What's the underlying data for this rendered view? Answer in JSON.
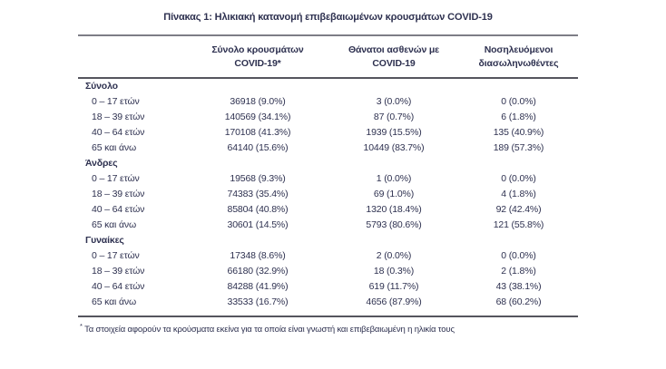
{
  "title": "Πίνακας 1: Ηλικιακή κατανομή επιβεβαιωμένων κρουσμάτων COVID-19",
  "table": {
    "columns": [
      {
        "line1": "Σύνολο κρουσμάτων",
        "line2": "COVID-19*"
      },
      {
        "line1": "Θάνατοι ασθενών με",
        "line2": "COVID-19"
      },
      {
        "line1": "Νοσηλευόμενοι",
        "line2": "διασωληνωθέντες"
      }
    ],
    "sections": [
      {
        "label": "Σύνολο",
        "rows": [
          {
            "age": "0 – 17 ετών",
            "cases": "36918 (9.0%)",
            "deaths": "3 (0.0%)",
            "intubated": "0 (0.0%)"
          },
          {
            "age": "18 – 39 ετών",
            "cases": "140569 (34.1%)",
            "deaths": "87 (0.7%)",
            "intubated": "6 (1.8%)"
          },
          {
            "age": "40 – 64 ετών",
            "cases": "170108 (41.3%)",
            "deaths": "1939 (15.5%)",
            "intubated": "135 (40.9%)"
          },
          {
            "age": "65 και άνω",
            "cases": "64140 (15.6%)",
            "deaths": "10449 (83.7%)",
            "intubated": "189 (57.3%)"
          }
        ]
      },
      {
        "label": "Άνδρες",
        "rows": [
          {
            "age": "0 – 17 ετών",
            "cases": "19568 (9.3%)",
            "deaths": "1 (0.0%)",
            "intubated": "0 (0.0%)"
          },
          {
            "age": "18 – 39 ετών",
            "cases": "74383 (35.4%)",
            "deaths": "69 (1.0%)",
            "intubated": "4 (1.8%)"
          },
          {
            "age": "40 – 64 ετών",
            "cases": "85804 (40.8%)",
            "deaths": "1320 (18.4%)",
            "intubated": "92 (42.4%)"
          },
          {
            "age": "65 και άνω",
            "cases": "30601 (14.5%)",
            "deaths": "5793 (80.6%)",
            "intubated": "121 (55.8%)"
          }
        ]
      },
      {
        "label": "Γυναίκες",
        "rows": [
          {
            "age": "0 – 17 ετών",
            "cases": "17348 (8.6%)",
            "deaths": "2 (0.0%)",
            "intubated": "0 (0.0%)"
          },
          {
            "age": "18 – 39 ετών",
            "cases": "66180 (32.9%)",
            "deaths": "18 (0.3%)",
            "intubated": "2 (1.8%)"
          },
          {
            "age": "40 – 64 ετών",
            "cases": "84288 (41.9%)",
            "deaths": "619 (11.7%)",
            "intubated": "43 (38.1%)"
          },
          {
            "age": "65 και άνω",
            "cases": "33533 (16.7%)",
            "deaths": "4656 (87.9%)",
            "intubated": "68 (60.2%)"
          }
        ]
      }
    ]
  },
  "footnote": {
    "marker": "*",
    "text": "Τα στοιχεία αφορούν τα κρούσματα εκείνα για τα οποία είναι γνωστή και επιβεβαιωμένη η ηλικία τους"
  },
  "colors": {
    "text": "#2e3150",
    "rule_dark": "#55555e",
    "rule_light": "#7d7d86",
    "background": "#ffffff"
  }
}
